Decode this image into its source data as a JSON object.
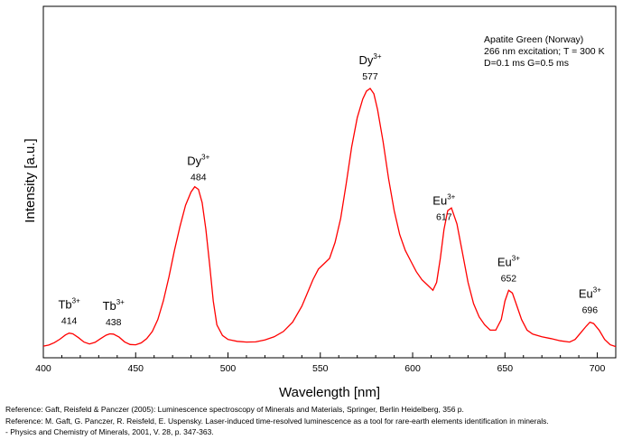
{
  "chart_data": {
    "type": "line",
    "title": "",
    "xlabel": "Wavelength [nm]",
    "ylabel": "Intensity [a.u.]",
    "xlim": [
      400,
      710
    ],
    "ylim": [
      0,
      100
    ],
    "xticks": [
      400,
      450,
      500,
      550,
      600,
      650,
      700
    ],
    "grid": false,
    "line_color": "#ff0000",
    "info_box": [
      "Apatite Green (Norway)",
      "266 nm excitation; T = 300 K",
      "D=0.1 ms G=0.5 ms"
    ],
    "series": [
      {
        "x": [
          400,
          403,
          406,
          409,
          412,
          414,
          416,
          419,
          422,
          425,
          428,
          431,
          434,
          436,
          438,
          441,
          444,
          447,
          450,
          453,
          456,
          459,
          462,
          465,
          468,
          471,
          474,
          477,
          480,
          482,
          484,
          486,
          488,
          490,
          492,
          494,
          497,
          500,
          505,
          510,
          515,
          520,
          525,
          530,
          535,
          540,
          543,
          546,
          549,
          552,
          555,
          558,
          561,
          564,
          567,
          570,
          573,
          575,
          577,
          579,
          581,
          584,
          587,
          590,
          593,
          596,
          599,
          602,
          605,
          608,
          611,
          613,
          615,
          617,
          619,
          621,
          624,
          627,
          630,
          633,
          636,
          639,
          642,
          645,
          648,
          650,
          652,
          654,
          656,
          659,
          662,
          665,
          670,
          675,
          680,
          685,
          688,
          691,
          694,
          696,
          698,
          701,
          704,
          707,
          710
        ],
        "values": [
          1.0,
          1.4,
          2.3,
          3.6,
          5.2,
          5.9,
          5.6,
          4.2,
          2.5,
          1.8,
          2.4,
          3.8,
          5.1,
          5.6,
          5.5,
          4.4,
          2.6,
          1.6,
          1.5,
          2.2,
          3.8,
          6.5,
          11,
          18,
          27,
          37,
          46,
          54,
          59,
          61,
          60,
          55,
          45,
          32,
          18,
          9,
          5,
          3.5,
          2.8,
          2.5,
          2.6,
          3.3,
          4.5,
          6.5,
          10,
          16,
          21,
          26,
          30,
          32,
          34,
          40,
          49,
          62,
          76,
          87,
          94,
          97,
          98,
          96,
          90,
          78,
          64,
          52,
          43,
          37,
          33,
          29,
          26,
          24,
          22,
          25,
          34,
          45,
          52,
          53,
          47,
          36,
          25,
          17,
          12,
          9,
          7,
          7,
          11,
          18,
          22,
          21,
          17,
          11,
          7,
          5.5,
          4.5,
          3.8,
          3.0,
          2.5,
          3.5,
          6,
          8.5,
          10,
          9.5,
          7,
          3.5,
          1.5,
          0.8
        ]
      }
    ],
    "annotations": [
      {
        "element": "Tb",
        "sup": "3+",
        "wavelength": "414",
        "x": 414
      },
      {
        "element": "Tb",
        "sup": "3+",
        "wavelength": "438",
        "x": 438
      },
      {
        "element": "Dy",
        "sup": "3+",
        "wavelength": "484",
        "x": 484
      },
      {
        "element": "Dy",
        "sup": "3+",
        "wavelength": "577",
        "x": 577
      },
      {
        "element": "Eu",
        "sup": "3+",
        "wavelength": "617",
        "x": 617
      },
      {
        "element": "Eu",
        "sup": "3+",
        "wavelength": "652",
        "x": 652
      },
      {
        "element": "Eu",
        "sup": "3+",
        "wavelength": "696",
        "x": 696
      }
    ]
  },
  "references": [
    "Reference: Gaft, Reisfeld & Panczer (2005): Luminescence spectroscopy of Minerals and Materials, Springer, Berlin Heidelberg, 356 p.",
    "Reference: M. Gaft, G. Panczer, R. Reisfeld, E. Uspensky. Laser-induced time-resolved luminescence as a tool for rare-earth elements identification in minerals.",
    "- Physics and Chemistry of Minerals, 2001, V. 28, p. 347-363."
  ]
}
